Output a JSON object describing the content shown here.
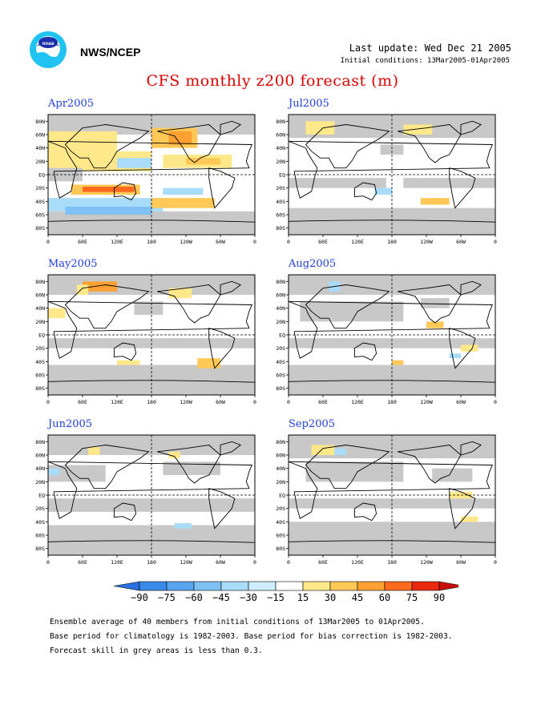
{
  "header": {
    "org": "NWS/NCEP",
    "last_update": "Last update: Wed Dec 21 2005",
    "initial_conditions": "Initial conditions: 13Mar2005-01Apr2005",
    "title": "CFS monthly z200 forecast (m)"
  },
  "panels": [
    {
      "label": "Apr2005"
    },
    {
      "label": "Jul2005"
    },
    {
      "label": "May2005"
    },
    {
      "label": "Aug2005"
    },
    {
      "label": "Jun2005"
    },
    {
      "label": "Sep2005"
    }
  ],
  "axes": {
    "lat_ticks": [
      "80N",
      "60N",
      "40N",
      "20N",
      "EQ",
      "20S",
      "40S",
      "60S",
      "80S"
    ],
    "lon_ticks": [
      "0",
      "60E",
      "120E",
      "180",
      "120W",
      "60W",
      "0"
    ]
  },
  "colorbar": {
    "labels": [
      "−90",
      "−75",
      "−60",
      "−45",
      "−30",
      "−15",
      "15",
      "30",
      "45",
      "60",
      "75",
      "90"
    ],
    "colors": [
      "#2a6fe0",
      "#3a8ae8",
      "#5aa5f0",
      "#7fc0f5",
      "#a8dcf8",
      "#cdeefc",
      "#ffffff",
      "#ffe88a",
      "#ffc857",
      "#ffa032",
      "#ff6a1e",
      "#e8280f",
      "#c8100a"
    ]
  },
  "colors": {
    "grey_mask": "#c8c8c8",
    "title_red": "#e00000",
    "panel_title_blue": "#1c3de0"
  },
  "notes": {
    "line1": "Ensemble average of 40 members from initial conditions of 13Mar2005 to 01Apr2005.",
    "line2": "Base period for climatology is 1982-2003. Base period for bias correction is 1982-2003.",
    "line3": "Forecast skill in grey areas is less than 0.3."
  }
}
